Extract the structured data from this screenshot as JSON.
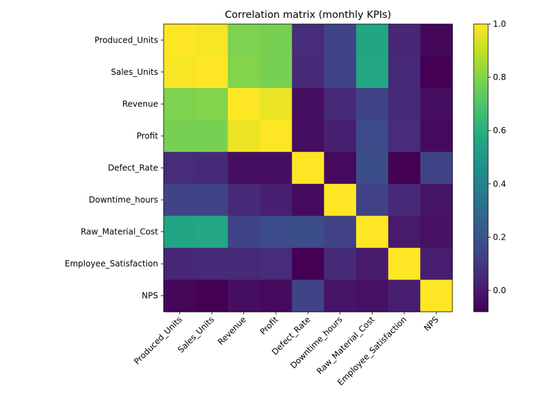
{
  "chart_data": {
    "type": "heatmap",
    "title": "Correlation matrix (monthly KPIs)",
    "xlabel": "",
    "ylabel": "",
    "labels": [
      "Produced_Units",
      "Sales_Units",
      "Revenue",
      "Profit",
      "Defect_Rate",
      "Downtime_hours",
      "Raw_Material_Cost",
      "Employee_Satisfaction",
      "NPS"
    ],
    "values": [
      [
        1.0,
        0.99,
        0.79,
        0.78,
        0.06,
        0.14,
        0.56,
        0.04,
        -0.06
      ],
      [
        0.99,
        1.0,
        0.8,
        0.78,
        0.05,
        0.14,
        0.57,
        0.05,
        -0.08
      ],
      [
        0.79,
        0.8,
        1.0,
        0.97,
        -0.04,
        0.05,
        0.14,
        0.05,
        -0.04
      ],
      [
        0.78,
        0.78,
        0.97,
        1.0,
        -0.04,
        0.02,
        0.17,
        0.06,
        -0.05
      ],
      [
        0.06,
        0.05,
        -0.04,
        -0.04,
        1.0,
        -0.05,
        0.18,
        -0.08,
        0.14
      ],
      [
        0.14,
        0.14,
        0.05,
        0.02,
        -0.05,
        1.0,
        0.13,
        0.05,
        -0.02
      ],
      [
        0.56,
        0.57,
        0.14,
        0.17,
        0.18,
        0.13,
        1.0,
        0.0,
        -0.03
      ],
      [
        0.04,
        0.05,
        0.05,
        0.06,
        -0.08,
        0.05,
        0.0,
        1.0,
        0.01
      ],
      [
        -0.06,
        -0.08,
        -0.04,
        -0.05,
        0.14,
        -0.02,
        -0.03,
        0.01,
        1.0
      ]
    ],
    "colormap": "viridis",
    "vmin": -0.08,
    "vmax": 1.0,
    "colorbar_ticks": [
      "0.0",
      "0.2",
      "0.4",
      "0.6",
      "0.8",
      "1.0"
    ],
    "colorbar_tick_values": [
      0.0,
      0.2,
      0.4,
      0.6,
      0.8,
      1.0
    ],
    "grid": false,
    "legend": "colorbar-right"
  }
}
